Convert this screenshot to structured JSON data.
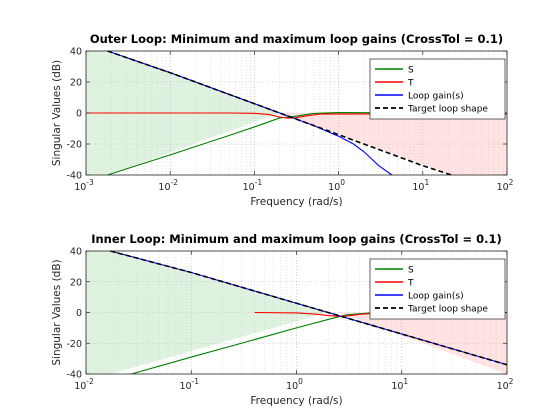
{
  "chart_data": [
    {
      "type": "line",
      "title": "Outer Loop: Minimum and maximum loop gains (CrossTol = 0.1)",
      "xlabel": "Frequency (rad/s)",
      "ylabel": "Singular Values (dB)",
      "xscale": "log",
      "xlim": [
        0.001,
        100
      ],
      "ylim": [
        -40,
        40
      ],
      "xticks": [
        {
          "v": 0.001,
          "base": "10",
          "exp": "-3"
        },
        {
          "v": 0.01,
          "base": "10",
          "exp": "-2"
        },
        {
          "v": 0.1,
          "base": "10",
          "exp": "-1"
        },
        {
          "v": 1,
          "base": "10",
          "exp": "0"
        },
        {
          "v": 10,
          "base": "10",
          "exp": "1"
        },
        {
          "v": 100,
          "base": "10",
          "exp": "2"
        }
      ],
      "yticks": [
        "40",
        "20",
        "0",
        "-20",
        "-40"
      ],
      "grid": true,
      "legend": "top-right",
      "colors": {
        "S": "#008000",
        "T": "#ff0000",
        "L": "#0000ff",
        "target": "#000000",
        "lowShade": "#dff2df",
        "highShade": "#ffe3e3"
      },
      "shading": {
        "low_region_top_db_at_xmin": 40,
        "high_region_start": 0.2
      },
      "series": [
        {
          "name": "S",
          "x": [
            0.0018,
            0.01,
            0.05,
            0.1,
            0.2,
            0.3,
            0.5,
            1,
            2,
            5,
            10,
            100
          ],
          "y": [
            -40,
            -27,
            -14.5,
            -9,
            -3.2,
            -2.2,
            -0.3,
            0.3,
            0.2,
            0.1,
            0.1,
            0
          ]
        },
        {
          "name": "T",
          "x": [
            0.001,
            0.05,
            0.1,
            0.15,
            0.2,
            0.25,
            0.3,
            0.4,
            0.6,
            100
          ],
          "y": [
            0,
            0,
            -0.2,
            -1,
            -2.6,
            -3.3,
            -3.2,
            -2,
            -0.7,
            -0.5
          ]
        },
        {
          "name": "Loop gain(s)",
          "x": [
            0.0018,
            0.01,
            0.1,
            0.5,
            1,
            1.5,
            2,
            3,
            4.3
          ],
          "y": [
            40,
            26,
            6,
            -8,
            -15,
            -20,
            -25,
            -34,
            -40
          ]
        },
        {
          "name": "Target loop shape",
          "x": [
            0.0018,
            0.01,
            0.1,
            1,
            10,
            22
          ],
          "y": [
            40,
            26,
            6,
            -14,
            -34,
            -40
          ]
        }
      ]
    },
    {
      "type": "line",
      "title": "Inner Loop: Minimum and maximum loop gains (CrossTol = 0.1)",
      "xlabel": "Frequency (rad/s)",
      "ylabel": "Singular Values (dB)",
      "xscale": "log",
      "xlim": [
        0.01,
        100
      ],
      "ylim": [
        -40,
        40
      ],
      "xticks": [
        {
          "v": 0.01,
          "base": "10",
          "exp": "-2"
        },
        {
          "v": 0.1,
          "base": "10",
          "exp": "-1"
        },
        {
          "v": 1,
          "base": "10",
          "exp": "0"
        },
        {
          "v": 10,
          "base": "10",
          "exp": "1"
        },
        {
          "v": 100,
          "base": "10",
          "exp": "2"
        }
      ],
      "yticks": [
        "40",
        "20",
        "0",
        "-20",
        "-40"
      ],
      "grid": true,
      "legend": "top-right",
      "colors": {
        "S": "#008000",
        "T": "#ff0000",
        "L": "#0000ff",
        "target": "#000000",
        "lowShade": "#dff2df",
        "highShade": "#ffe3e3"
      },
      "shading": {
        "low_region_top_db_at_xmin": 40,
        "high_region_start": 2.5
      },
      "series": [
        {
          "name": "S",
          "x": [
            0.027,
            0.1,
            0.3,
            1,
            2,
            3,
            5,
            10,
            100
          ],
          "y": [
            -40,
            -29,
            -20,
            -10,
            -4.5,
            -1.5,
            -0.3,
            0,
            0
          ]
        },
        {
          "name": "T",
          "x": [
            0.4,
            1,
            1.5,
            2,
            2.5,
            3,
            4,
            6,
            10
          ],
          "y": [
            0,
            -0.3,
            -1,
            -2,
            -2.5,
            -2.3,
            -1.2,
            -0.4,
            0
          ]
        },
        {
          "name": "Loop gain(s)",
          "x": [
            0.017,
            0.1,
            1,
            10,
            100
          ],
          "y": [
            40,
            26,
            6,
            -14,
            -34
          ]
        },
        {
          "name": "Target loop shape",
          "x": [
            0.017,
            0.1,
            1,
            10,
            100
          ],
          "y": [
            40,
            26,
            6,
            -14,
            -34
          ]
        }
      ]
    }
  ]
}
